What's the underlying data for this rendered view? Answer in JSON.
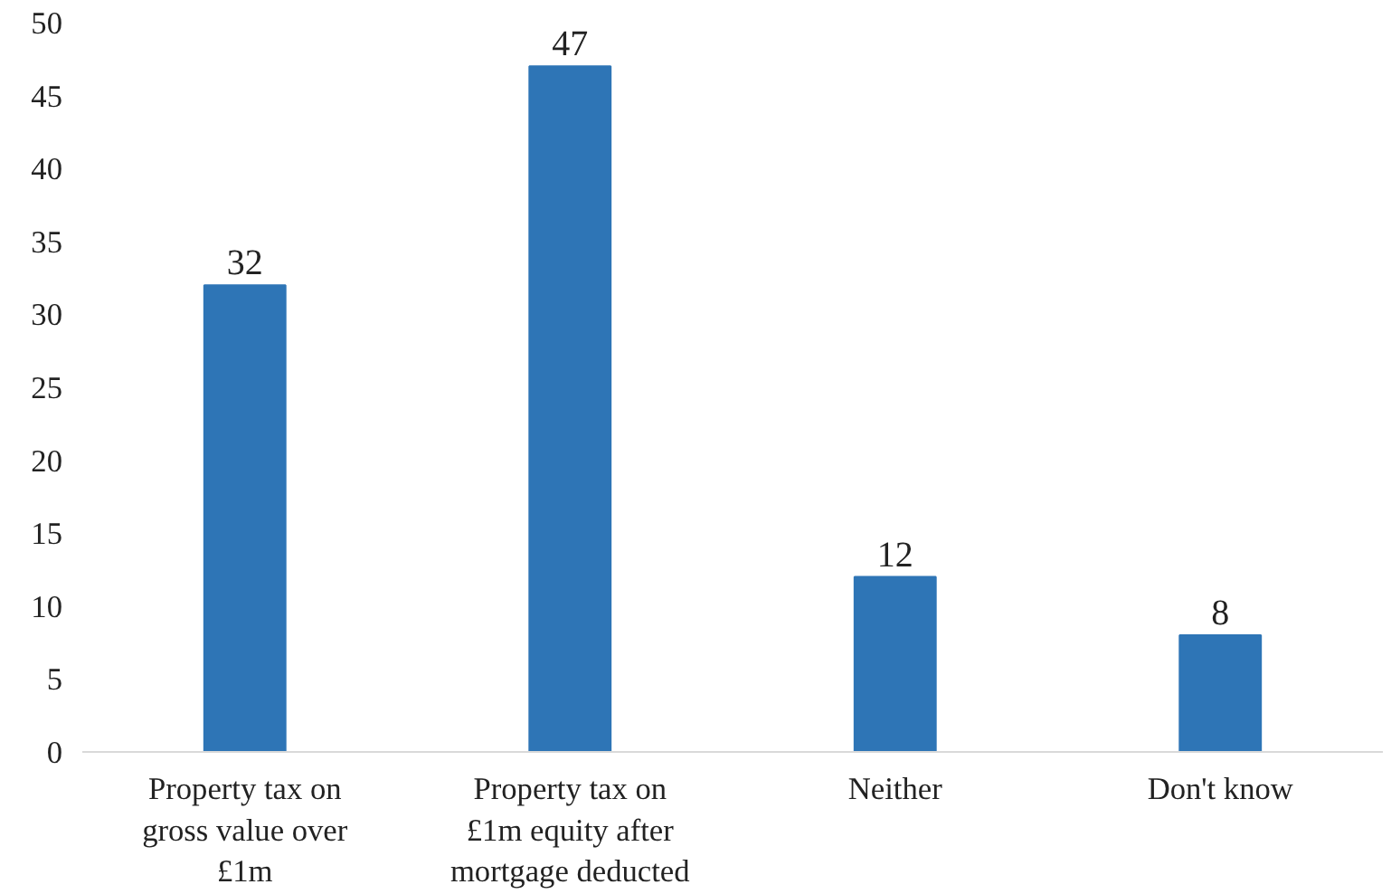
{
  "chart_data": {
    "type": "bar",
    "categories": [
      "Property tax on gross value over £1m",
      "Property tax on £1m equity after mortgage deducted",
      "Neither",
      "Don't know"
    ],
    "values": [
      32,
      47,
      12,
      8
    ],
    "color": "#2e75b6",
    "ylim": [
      0,
      50
    ],
    "yticks": [
      0,
      5,
      10,
      15,
      20,
      25,
      30,
      35,
      40,
      45,
      50
    ],
    "grid": false,
    "data_labels": true
  }
}
